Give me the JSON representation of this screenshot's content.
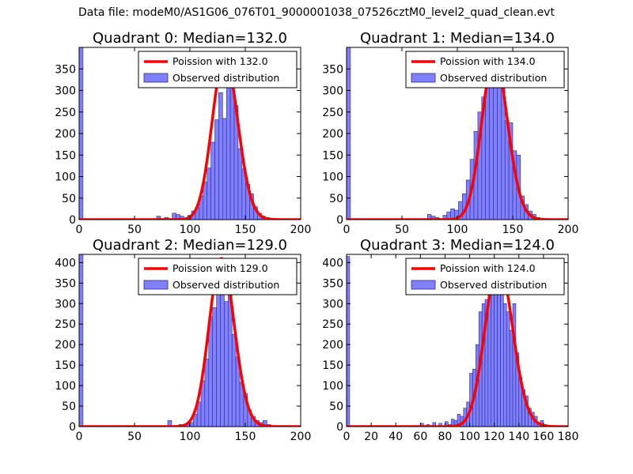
{
  "figure": {
    "suptitle": "Data file: modeM0/AS1G06_076T01_9000001038_07526cztM0_level2_quad_clean.evt"
  },
  "colors": {
    "bar_fill": "#8080ff",
    "bar_edge": "#2a2a8a",
    "line": "#ff0000"
  },
  "chart_data": [
    {
      "type": "bar+line",
      "title": "Quadrant 0: Median=132.0",
      "xlim": [
        0,
        200
      ],
      "ylim": [
        0,
        400
      ],
      "xticks": [
        "0",
        "50",
        "100",
        "150",
        "200"
      ],
      "yticks": [
        "0",
        "50",
        "100",
        "150",
        "200",
        "250",
        "300",
        "350"
      ],
      "legend": [
        "Poission with 132.0",
        "Observed distribution"
      ],
      "bins": [
        {
          "x0": 0,
          "x1": 3.5,
          "v": 400
        },
        {
          "x0": 70,
          "x1": 73.5,
          "v": 8
        },
        {
          "x0": 77,
          "x1": 80.5,
          "v": 5
        },
        {
          "x0": 84,
          "x1": 87.5,
          "v": 15
        },
        {
          "x0": 87.5,
          "x1": 91,
          "v": 12
        },
        {
          "x0": 91,
          "x1": 94.5,
          "v": 8
        },
        {
          "x0": 98,
          "x1": 101.5,
          "v": 10
        },
        {
          "x0": 101.5,
          "x1": 105,
          "v": 20
        },
        {
          "x0": 105,
          "x1": 108.5,
          "v": 28
        },
        {
          "x0": 108.5,
          "x1": 112,
          "v": 55
        },
        {
          "x0": 112,
          "x1": 115.5,
          "v": 88
        },
        {
          "x0": 115.5,
          "x1": 119,
          "v": 120
        },
        {
          "x0": 119,
          "x1": 122.5,
          "v": 180
        },
        {
          "x0": 122.5,
          "x1": 126,
          "v": 232
        },
        {
          "x0": 126,
          "x1": 129.5,
          "v": 295
        },
        {
          "x0": 129.5,
          "x1": 133,
          "v": 235
        },
        {
          "x0": 133,
          "x1": 136.5,
          "v": 355
        },
        {
          "x0": 136.5,
          "x1": 140,
          "v": 330
        },
        {
          "x0": 140,
          "x1": 143.5,
          "v": 265
        },
        {
          "x0": 143.5,
          "x1": 147,
          "v": 165
        },
        {
          "x0": 147,
          "x1": 150.5,
          "v": 118
        },
        {
          "x0": 150.5,
          "x1": 154,
          "v": 82
        },
        {
          "x0": 154,
          "x1": 157.5,
          "v": 60
        },
        {
          "x0": 157.5,
          "x1": 161,
          "v": 30
        },
        {
          "x0": 161,
          "x1": 164.5,
          "v": 15
        },
        {
          "x0": 164.5,
          "x1": 168,
          "v": 8
        },
        {
          "x0": 168,
          "x1": 171.5,
          "v": 5
        },
        {
          "x0": 171.5,
          "x1": 175,
          "v": 3
        }
      ],
      "poisson": {
        "mu": 132.0,
        "amplitude": 380
      }
    },
    {
      "type": "bar+line",
      "title": "Quadrant 1: Median=134.0",
      "xlim": [
        0,
        200
      ],
      "ylim": [
        0,
        400
      ],
      "xticks": [
        "0",
        "50",
        "100",
        "150",
        "200"
      ],
      "yticks": [
        "0",
        "50",
        "100",
        "150",
        "200",
        "250",
        "300",
        "350"
      ],
      "legend": [
        "Poission with 134.0",
        "Observed distribution"
      ],
      "bins": [
        {
          "x0": 0,
          "x1": 3.5,
          "v": 400
        },
        {
          "x0": 73,
          "x1": 76.5,
          "v": 12
        },
        {
          "x0": 76.5,
          "x1": 80,
          "v": 8
        },
        {
          "x0": 80,
          "x1": 83.5,
          "v": 5
        },
        {
          "x0": 87,
          "x1": 90.5,
          "v": 10
        },
        {
          "x0": 90.5,
          "x1": 94,
          "v": 18
        },
        {
          "x0": 94,
          "x1": 97.5,
          "v": 25
        },
        {
          "x0": 97.5,
          "x1": 101,
          "v": 22
        },
        {
          "x0": 101,
          "x1": 104.5,
          "v": 42
        },
        {
          "x0": 104.5,
          "x1": 108,
          "v": 60
        },
        {
          "x0": 108,
          "x1": 111.5,
          "v": 92
        },
        {
          "x0": 111.5,
          "x1": 115,
          "v": 140
        },
        {
          "x0": 115,
          "x1": 118.5,
          "v": 205
        },
        {
          "x0": 118.5,
          "x1": 122,
          "v": 250
        },
        {
          "x0": 122,
          "x1": 125.5,
          "v": 285
        },
        {
          "x0": 125.5,
          "x1": 129,
          "v": 320
        },
        {
          "x0": 129,
          "x1": 132.5,
          "v": 365
        },
        {
          "x0": 132.5,
          "x1": 136,
          "v": 340
        },
        {
          "x0": 136,
          "x1": 139.5,
          "v": 330
        },
        {
          "x0": 139.5,
          "x1": 143,
          "v": 315
        },
        {
          "x0": 143,
          "x1": 146.5,
          "v": 230
        },
        {
          "x0": 146.5,
          "x1": 150,
          "v": 225
        },
        {
          "x0": 150,
          "x1": 153.5,
          "v": 160
        },
        {
          "x0": 153.5,
          "x1": 157,
          "v": 150
        },
        {
          "x0": 157,
          "x1": 160.5,
          "v": 55
        },
        {
          "x0": 160.5,
          "x1": 164,
          "v": 35
        },
        {
          "x0": 164,
          "x1": 167.5,
          "v": 20
        },
        {
          "x0": 167.5,
          "x1": 171,
          "v": 12
        },
        {
          "x0": 171,
          "x1": 174.5,
          "v": 5
        },
        {
          "x0": 174.5,
          "x1": 178,
          "v": 3
        },
        {
          "x0": 178,
          "x1": 181.5,
          "v": 2
        }
      ],
      "poisson": {
        "mu": 134.0,
        "amplitude": 378
      }
    },
    {
      "type": "bar+line",
      "title": "Quadrant 2: Median=129.0",
      "xlim": [
        0,
        200
      ],
      "ylim": [
        0,
        420
      ],
      "xticks": [
        "0",
        "50",
        "100",
        "150",
        "200"
      ],
      "yticks": [
        "0",
        "50",
        "100",
        "150",
        "200",
        "250",
        "300",
        "350",
        "400"
      ],
      "legend": [
        "Poission with 129.0",
        "Observed distribution"
      ],
      "bins": [
        {
          "x0": 0,
          "x1": 3.5,
          "v": 420
        },
        {
          "x0": 80,
          "x1": 83.5,
          "v": 15
        },
        {
          "x0": 90,
          "x1": 93.5,
          "v": 5
        },
        {
          "x0": 96,
          "x1": 99.5,
          "v": 8
        },
        {
          "x0": 99.5,
          "x1": 103,
          "v": 10
        },
        {
          "x0": 103,
          "x1": 106.5,
          "v": 30
        },
        {
          "x0": 106.5,
          "x1": 110,
          "v": 60
        },
        {
          "x0": 110,
          "x1": 113.5,
          "v": 112
        },
        {
          "x0": 113.5,
          "x1": 117,
          "v": 165
        },
        {
          "x0": 117,
          "x1": 120.5,
          "v": 268
        },
        {
          "x0": 120.5,
          "x1": 124,
          "v": 290
        },
        {
          "x0": 124,
          "x1": 127.5,
          "v": 365
        },
        {
          "x0": 127.5,
          "x1": 131,
          "v": 398
        },
        {
          "x0": 131,
          "x1": 134.5,
          "v": 305
        },
        {
          "x0": 134.5,
          "x1": 138,
          "v": 380
        },
        {
          "x0": 138,
          "x1": 141.5,
          "v": 225
        },
        {
          "x0": 141.5,
          "x1": 145,
          "v": 170
        },
        {
          "x0": 145,
          "x1": 148.5,
          "v": 108
        },
        {
          "x0": 148.5,
          "x1": 152,
          "v": 80
        },
        {
          "x0": 152,
          "x1": 155.5,
          "v": 40
        },
        {
          "x0": 155.5,
          "x1": 159,
          "v": 25
        },
        {
          "x0": 159,
          "x1": 162.5,
          "v": 15
        },
        {
          "x0": 162.5,
          "x1": 166,
          "v": 10
        },
        {
          "x0": 166,
          "x1": 169.5,
          "v": 15
        },
        {
          "x0": 169.5,
          "x1": 173,
          "v": 5
        }
      ],
      "poisson": {
        "mu": 129.0,
        "amplitude": 410
      }
    },
    {
      "type": "bar+line",
      "title": "Quadrant 3: Median=124.0",
      "xlim": [
        0,
        180
      ],
      "ylim": [
        0,
        420
      ],
      "xticks": [
        "0",
        "20",
        "40",
        "60",
        "80",
        "100",
        "120",
        "140",
        "160",
        "180"
      ],
      "yticks": [
        "0",
        "50",
        "100",
        "150",
        "200",
        "250",
        "300",
        "350",
        "400"
      ],
      "legend": [
        "Poission with 124.0",
        "Observed distribution"
      ],
      "bins": [
        {
          "x0": 0,
          "x1": 2.5,
          "v": 415
        },
        {
          "x0": 60,
          "x1": 62.5,
          "v": 8
        },
        {
          "x0": 65,
          "x1": 67.5,
          "v": 5
        },
        {
          "x0": 70,
          "x1": 72.5,
          "v": 10
        },
        {
          "x0": 75,
          "x1": 77.5,
          "v": 8
        },
        {
          "x0": 80,
          "x1": 82.5,
          "v": 12
        },
        {
          "x0": 82.5,
          "x1": 85,
          "v": 5
        },
        {
          "x0": 85,
          "x1": 87.5,
          "v": 18
        },
        {
          "x0": 87.5,
          "x1": 90,
          "v": 15
        },
        {
          "x0": 90,
          "x1": 92.5,
          "v": 30
        },
        {
          "x0": 92.5,
          "x1": 95,
          "v": 25
        },
        {
          "x0": 95,
          "x1": 97.5,
          "v": 45
        },
        {
          "x0": 97.5,
          "x1": 100,
          "v": 60
        },
        {
          "x0": 100,
          "x1": 102.5,
          "v": 130
        },
        {
          "x0": 102.5,
          "x1": 105,
          "v": 140
        },
        {
          "x0": 105,
          "x1": 107.5,
          "v": 200
        },
        {
          "x0": 107.5,
          "x1": 110,
          "v": 280
        },
        {
          "x0": 110,
          "x1": 112.5,
          "v": 300
        },
        {
          "x0": 112.5,
          "x1": 115,
          "v": 310
        },
        {
          "x0": 115,
          "x1": 117.5,
          "v": 325
        },
        {
          "x0": 117.5,
          "x1": 120,
          "v": 345
        },
        {
          "x0": 120,
          "x1": 122.5,
          "v": 370
        },
        {
          "x0": 122.5,
          "x1": 125,
          "v": 400
        },
        {
          "x0": 125,
          "x1": 127.5,
          "v": 370
        },
        {
          "x0": 127.5,
          "x1": 130,
          "v": 300
        },
        {
          "x0": 130,
          "x1": 132.5,
          "v": 280
        },
        {
          "x0": 132.5,
          "x1": 135,
          "v": 235
        },
        {
          "x0": 135,
          "x1": 137.5,
          "v": 300
        },
        {
          "x0": 137.5,
          "x1": 140,
          "v": 180
        },
        {
          "x0": 140,
          "x1": 142.5,
          "v": 120
        },
        {
          "x0": 142.5,
          "x1": 145,
          "v": 90
        },
        {
          "x0": 145,
          "x1": 147.5,
          "v": 75
        },
        {
          "x0": 147.5,
          "x1": 150,
          "v": 45
        },
        {
          "x0": 150,
          "x1": 152.5,
          "v": 35
        },
        {
          "x0": 152.5,
          "x1": 155,
          "v": 25
        },
        {
          "x0": 155,
          "x1": 157.5,
          "v": 10
        },
        {
          "x0": 157.5,
          "x1": 160,
          "v": 15
        },
        {
          "x0": 160,
          "x1": 162.5,
          "v": 5
        },
        {
          "x0": 162.5,
          "x1": 165,
          "v": 3
        }
      ],
      "poisson": {
        "mu": 124.0,
        "amplitude": 400
      }
    }
  ]
}
